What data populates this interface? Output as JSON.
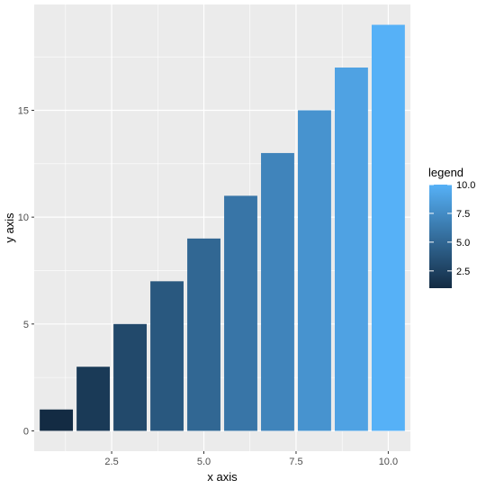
{
  "chart_data": {
    "type": "bar",
    "x": [
      1,
      2,
      3,
      4,
      5,
      6,
      7,
      8,
      9,
      10
    ],
    "values": [
      1,
      3,
      5,
      7,
      9,
      11,
      13,
      15,
      17,
      19
    ],
    "fill_by": "x",
    "xlabel": "x axis",
    "ylabel": "y axis",
    "xlim": [
      0.4,
      10.6
    ],
    "ylim": [
      -0.95,
      19.95
    ],
    "x_ticks": [
      2.5,
      5.0,
      7.5,
      10.0
    ],
    "x_tick_labels": [
      "2.5",
      "5.0",
      "7.5",
      "10.0"
    ],
    "y_ticks": [
      0,
      5,
      10,
      15
    ],
    "y_tick_labels": [
      "0",
      "5",
      "10",
      "15"
    ],
    "grid": true,
    "legend": {
      "title": "legend",
      "placement": "right",
      "type": "colorbar",
      "range": [
        1,
        10
      ],
      "ticks": [
        2.5,
        5.0,
        7.5,
        10.0
      ],
      "tick_labels": [
        "2.5",
        "5.0",
        "7.5",
        "10.0"
      ],
      "low_color": "#132B43",
      "high_color": "#56B1F7"
    },
    "panel_background": "#EBEBEB",
    "grid_color": "#FFFFFF"
  }
}
